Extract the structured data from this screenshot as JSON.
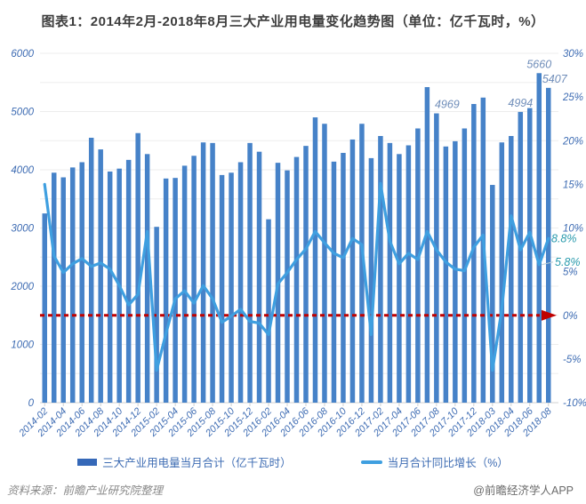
{
  "title": "图表1：2014年2月-2018年8月三大产业用电量变化趋势图（单位：亿千瓦时，%）",
  "legend": {
    "bar_label": "三大产业用电量当月合计（亿千瓦时）",
    "line_label": "当月合计同比增长（%）"
  },
  "footer": {
    "source": "资料来源：前瞻产业研究院整理",
    "brand": "@前瞻经济学人APP"
  },
  "colors": {
    "bar": "#4682c8",
    "line": "#3f9fe0",
    "legend_bar_swatch": "#3568b8",
    "axis_text": "#3e6cb3",
    "value_label": "#6f8db9",
    "callout": "#2a9bad",
    "reference_line": "#c00000",
    "gridline": "#ededed",
    "baseline": "#d0d0d0",
    "title_text": "#3d3d3d"
  },
  "chart_data": {
    "type": "bar",
    "subtype": "combo-bar-line-dual-axis",
    "title": "图表1：2014年2月-2018年8月三大产业用电量变化趋势图（单位：亿千瓦时，%）",
    "grid": true,
    "legend_position": "bottom",
    "categories": [
      "2014-02",
      "",
      "2014-04",
      "",
      "2014-06",
      "",
      "2014-08",
      "",
      "2014-10",
      "",
      "2014-12",
      "",
      "2015-02",
      "",
      "2015-04",
      "",
      "2015-06",
      "",
      "2015-08",
      "",
      "2015-10",
      "",
      "2015-12",
      "",
      "2016-02",
      "",
      "2016-04",
      "",
      "2016-06",
      "",
      "2016-08",
      "",
      "2016-10",
      "",
      "2016-12",
      "",
      "2017-02",
      "",
      "2017-04",
      "",
      "2017-06",
      "",
      "2017-08",
      "",
      "2017-10",
      "",
      "2017-12",
      "",
      "2018-03",
      "",
      "2018-04",
      "",
      "2018-06",
      "",
      "2018-08"
    ],
    "series": [
      {
        "name": "三大产业用电量当月合计（亿千瓦时）",
        "type": "bar",
        "axis": "left",
        "color": "#4682c8",
        "values": [
          3250,
          3950,
          3870,
          4040,
          4130,
          4550,
          4350,
          3970,
          4020,
          4170,
          4630,
          4270,
          3020,
          3850,
          3860,
          4070,
          4240,
          4470,
          4460,
          3910,
          3950,
          4130,
          4460,
          4310,
          3150,
          4120,
          3990,
          4220,
          4410,
          4900,
          4790,
          4140,
          4290,
          4520,
          4790,
          4200,
          4580,
          4460,
          4270,
          4420,
          4710,
          5420,
          4969,
          4400,
          4490,
          4710,
          5130,
          5240,
          3740,
          4470,
          4580,
          4994,
          5060,
          5660,
          5407
        ]
      },
      {
        "name": "当月合计同比增长（%）",
        "type": "line",
        "axis": "right",
        "color": "#3f9fe0",
        "values": [
          15.0,
          6.8,
          4.9,
          5.9,
          6.5,
          5.6,
          6.0,
          5.3,
          3.4,
          1.2,
          2.4,
          9.6,
          -6.3,
          -2.1,
          1.9,
          2.8,
          1.4,
          3.4,
          1.9,
          -0.8,
          -0.1,
          0.7,
          -0.7,
          -0.9,
          -2.2,
          3.6,
          4.9,
          6.4,
          7.6,
          9.6,
          8.3,
          7.1,
          6.6,
          8.8,
          8.1,
          -2.2,
          15.1,
          8.5,
          5.9,
          7.1,
          6.4,
          9.6,
          7.5,
          6.1,
          5.3,
          5.1,
          7.8,
          9.2,
          -6.3,
          0.7,
          11.4,
          7.5,
          9.5,
          5.8,
          8.8
        ]
      }
    ],
    "left_axis": {
      "label": "亿千瓦时",
      "min": 0,
      "max": 6000,
      "ticks": [
        "6000",
        "5000",
        "4000",
        "3000",
        "2000",
        "1000",
        "0"
      ]
    },
    "right_axis": {
      "label": "%",
      "min": -10,
      "max": 30,
      "ticks": [
        "30%",
        "25%",
        "20%",
        "15%",
        "10%",
        "5%",
        "0%",
        "-5%",
        "-10%"
      ]
    },
    "bar_value_labels": [
      {
        "index": 42,
        "text": "4969",
        "dx": 12
      },
      {
        "index": 51,
        "text": "4994",
        "dx": 0
      },
      {
        "index": 53,
        "text": "5660",
        "dx": 0
      },
      {
        "index": 54,
        "text": "5407",
        "dx": 7
      }
    ],
    "line_point_labels": [
      {
        "index": 53,
        "text": "5.8%"
      },
      {
        "index": 54,
        "text": "8.8%"
      }
    ],
    "reference_line": {
      "axis": "right",
      "value": 0,
      "style": "dashed",
      "arrow": true,
      "color": "#c00000"
    }
  }
}
